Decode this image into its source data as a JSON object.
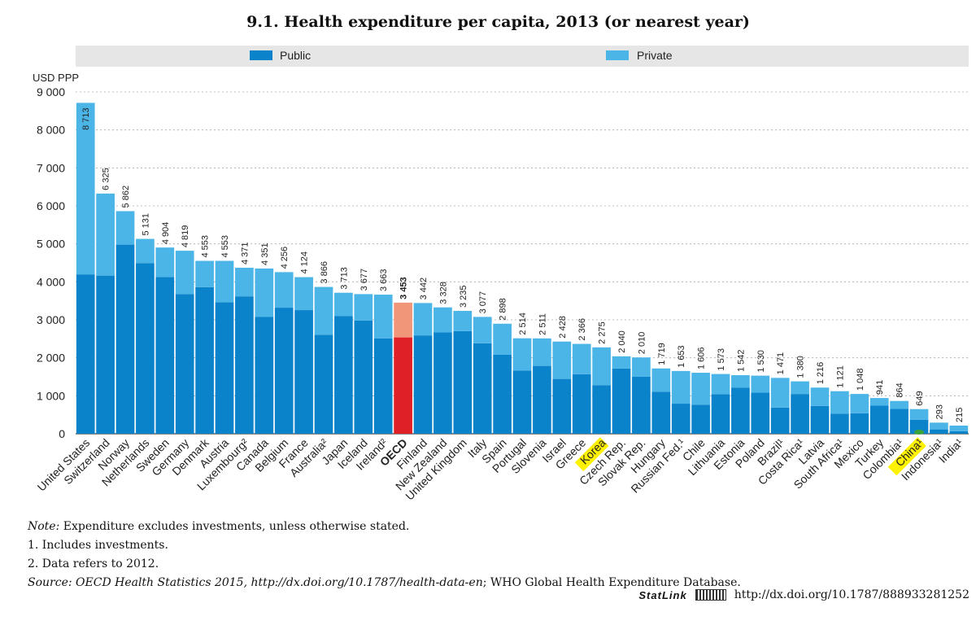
{
  "chart_data": {
    "type": "bar",
    "stacked": true,
    "title": "9.1.  Health expenditure per capita, 2013 (or nearest year)",
    "ylabel": "USD PPP",
    "ylim": [
      0,
      9000
    ],
    "yticks": [
      0,
      1000,
      2000,
      3000,
      4000,
      5000,
      6000,
      7000,
      8000,
      9000
    ],
    "ytick_labels": [
      "0",
      "1 000",
      "2 000",
      "3 000",
      "4 000",
      "5 000",
      "6 000",
      "7 000",
      "8 000",
      "9 000"
    ],
    "grid": "horizontal dashed",
    "legend_position": "top",
    "categories": [
      "United States",
      "Switzerland",
      "Norway",
      "Netherlands",
      "Sweden",
      "Germany",
      "Denmark",
      "Austria",
      "Luxembourg²",
      "Canada",
      "Belgium",
      "France",
      "Australia²",
      "Japan",
      "Iceland",
      "Ireland²",
      "OECD",
      "Finland",
      "New Zealand",
      "United Kingdom",
      "Italy",
      "Spain",
      "Portugal",
      "Slovenia",
      "Israel",
      "Greece",
      "Korea",
      "Czech Rep.",
      "Slovak Rep.",
      "Hungary",
      "Russian Fed.¹",
      "Chile",
      "Lithuania",
      "Estonia",
      "Poland",
      "Brazil¹",
      "Costa Rica¹",
      "Latvia",
      "South Africa¹",
      "Mexico",
      "Turkey",
      "Colombia¹",
      "China¹",
      "Indonesia¹",
      "India¹"
    ],
    "totals": [
      8713,
      6325,
      5862,
      5131,
      4904,
      4819,
      4553,
      4553,
      4371,
      4351,
      4256,
      4124,
      3866,
      3713,
      3677,
      3663,
      3453,
      3442,
      3328,
      3235,
      3077,
      2898,
      2514,
      2511,
      2428,
      2366,
      2275,
      2040,
      2010,
      1719,
      1653,
      1606,
      1573,
      1542,
      1530,
      1471,
      1380,
      1216,
      1121,
      1048,
      941,
      864,
      649,
      293,
      215
    ],
    "total_labels": [
      "8 713",
      "6 325",
      "5 862",
      "5 131",
      "4 904",
      "4 819",
      "4 553",
      "4 553",
      "4 371",
      "4 351",
      "4 256",
      "4 124",
      "3 866",
      "3 713",
      "3 677",
      "3 663",
      "3 453",
      "3 442",
      "3 328",
      "3 235",
      "3 077",
      "2 898",
      "2 514",
      "2 511",
      "2 428",
      "2 366",
      "2 275",
      "2 040",
      "2 010",
      "1 719",
      "1 653",
      "1 606",
      "1 573",
      "1 542",
      "1 530",
      "1 471",
      "1 380",
      "1 216",
      "1 121",
      "1 048",
      "941",
      "864",
      "649",
      "293",
      "215"
    ],
    "series": [
      {
        "name": "Public",
        "values": [
          4197,
          4165,
          4980,
          4495,
          4128,
          3677,
          3861,
          3463,
          3618,
          3082,
          3320,
          3256,
          2608,
          3097,
          2984,
          2513,
          2537,
          2590,
          2669,
          2703,
          2382,
          2079,
          1667,
          1787,
          1444,
          1567,
          1281,
          1716,
          1501,
          1108,
          792,
          766,
          1043,
          1217,
          1084,
          689,
          1047,
          733,
          531,
          540,
          740,
          655,
          365,
          115,
          69
        ]
      },
      {
        "name": "Private",
        "values": [
          4516,
          2160,
          882,
          636,
          776,
          1142,
          692,
          1090,
          753,
          1269,
          936,
          868,
          1258,
          616,
          693,
          1150,
          916,
          852,
          659,
          532,
          695,
          819,
          847,
          724,
          984,
          799,
          994,
          324,
          509,
          611,
          861,
          840,
          530,
          325,
          446,
          782,
          333,
          483,
          590,
          508,
          201,
          209,
          284,
          178,
          146
        ]
      }
    ],
    "highlight_category": "OECD",
    "marked_categories": [
      "Korea",
      "China¹"
    ]
  },
  "colors": {
    "public": "#0a83cb",
    "private": "#4cb5e8",
    "oecd_public": "#df2027",
    "oecd_private": "#f2967a",
    "legend_band": "#e6e6e6",
    "highlight_marker": "#fff200",
    "china_dot": "#3aa23a",
    "grid": "#aaaaaa"
  },
  "notes": {
    "note_prefix": "Note:",
    "note_text": "Expenditure excludes investments, unless otherwise stated.",
    "note1": "1.   Includes investments.",
    "note2": "2.   Data refers to 2012.",
    "source_prefix": "Source:",
    "source_text_italic": "OECD Health Statistics 2015, http://dx.doi.org/10.1787/health-data-en",
    "source_text_rest": "; WHO Global Health Expenditure Database."
  },
  "statlink": {
    "label": "StatLink",
    "icon": "statlink-barcode-icon",
    "url": "http://dx.doi.org/10.1787/888933281252"
  }
}
